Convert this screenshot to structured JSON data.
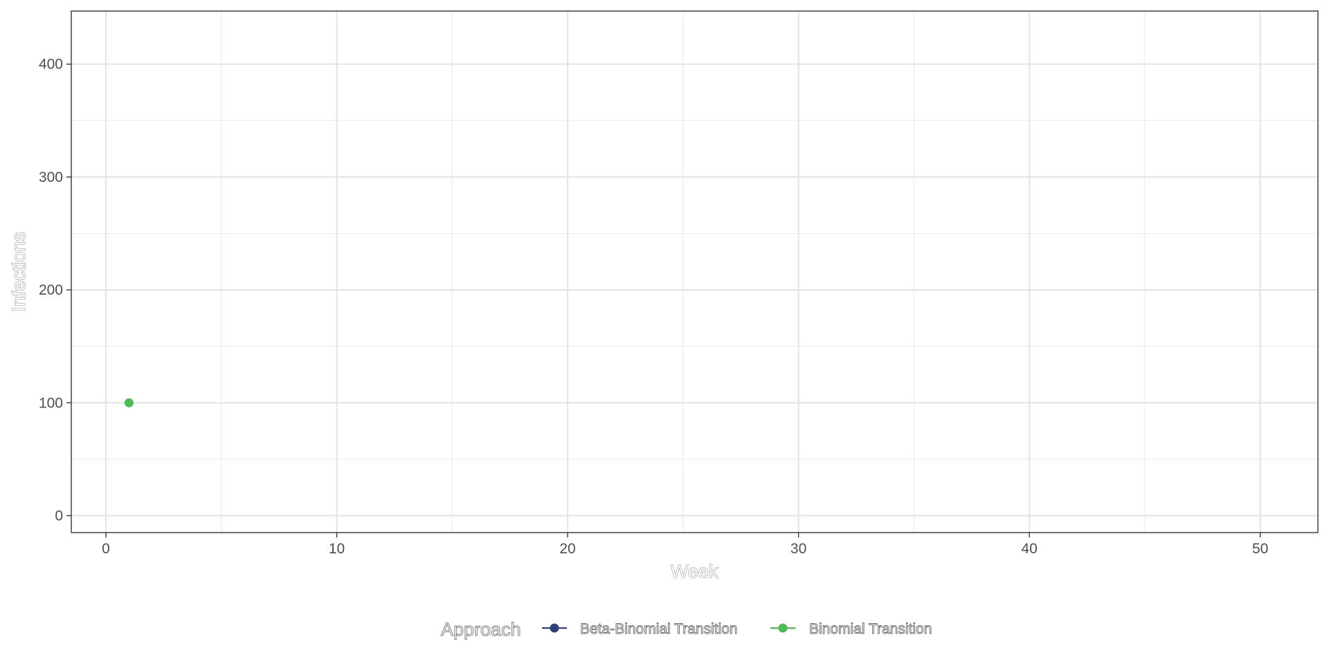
{
  "chart_data": {
    "type": "line",
    "title": "",
    "xlabel": "Week",
    "ylabel": "Infections",
    "xlim": [
      -1.5,
      52.5
    ],
    "ylim": [
      -15,
      447
    ],
    "x_ticks": [
      0,
      10,
      20,
      30,
      40,
      50
    ],
    "y_ticks": [
      0,
      100,
      200,
      300,
      400
    ],
    "x_tick_labels": [
      "0",
      "10",
      "20",
      "30",
      "40",
      "50"
    ],
    "y_tick_labels": [
      "0",
      "100",
      "200",
      "300",
      "400"
    ],
    "x_minor_ticks": [
      5,
      15,
      25,
      35,
      45
    ],
    "y_minor_ticks": [
      50,
      150,
      250,
      350
    ],
    "grid": true,
    "legend": {
      "title": "Approach",
      "placement": "bottom",
      "entries": [
        "Beta-Binomial Transition",
        "Binomial Transition"
      ]
    },
    "series": [
      {
        "name": "Beta-Binomial Transition",
        "color": "#2d3f75",
        "points": []
      },
      {
        "name": "Binomial Transition",
        "color": "#4dbb54",
        "points": [
          {
            "x": 1,
            "y": 100
          }
        ]
      }
    ]
  }
}
